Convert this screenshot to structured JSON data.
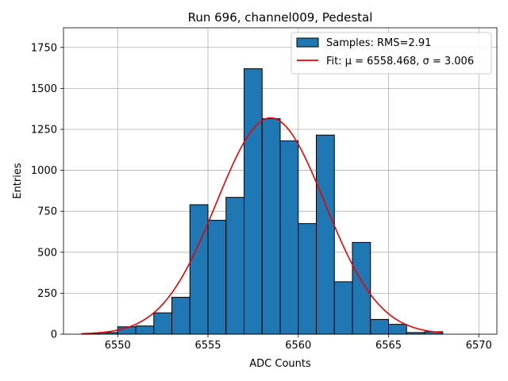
{
  "chart_data": {
    "type": "bar",
    "title": "Run 696, channel009, Pedestal",
    "xlabel": "ADC Counts",
    "ylabel": "Entries",
    "xlim": [
      6547.0,
      6571.0
    ],
    "ylim": [
      0,
      1870
    ],
    "grid": true,
    "legend_position": "top-right",
    "x_ticks": [
      6550,
      6555,
      6560,
      6565,
      6570
    ],
    "y_ticks": [
      0,
      250,
      500,
      750,
      1000,
      1250,
      1500,
      1750
    ],
    "histogram": {
      "name": "Samples: RMS=2.91",
      "color": "#1f77b4",
      "bin_edges": [
        6548,
        6549,
        6550,
        6551,
        6552,
        6553,
        6554,
        6555,
        6556,
        6557,
        6558,
        6559,
        6560,
        6561,
        6562,
        6563,
        6564,
        6565,
        6566,
        6567,
        6568
      ],
      "counts": [
        2,
        10,
        45,
        50,
        130,
        225,
        790,
        695,
        835,
        1620,
        1315,
        1180,
        675,
        1215,
        320,
        560,
        90,
        60,
        10,
        15
      ]
    },
    "fit": {
      "name": "Fit: μ = 6558.468, σ = 3.006",
      "color": "#ee0000",
      "mu": 6558.468,
      "sigma": 3.006,
      "amplitude": 1320,
      "x_range": [
        6548,
        6568
      ]
    }
  }
}
